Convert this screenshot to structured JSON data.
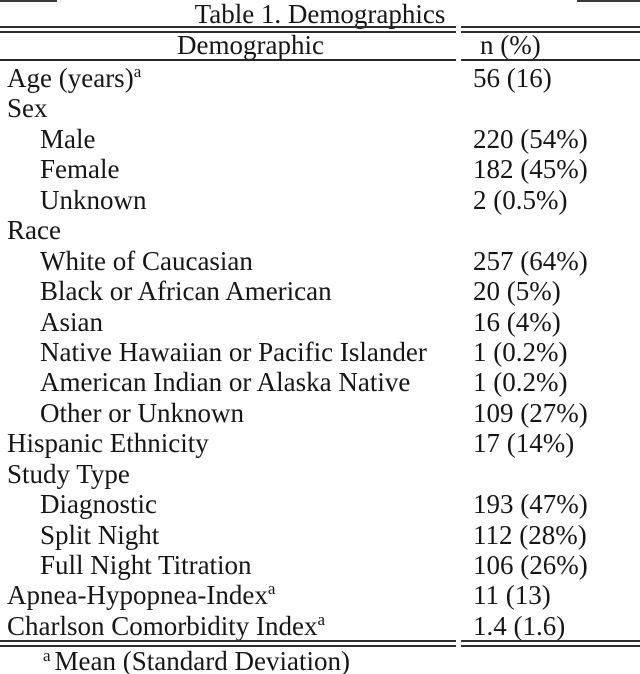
{
  "table": {
    "title": "Table 1. Demographics",
    "columns": [
      "Demographic",
      "n (%)"
    ],
    "rows": [
      {
        "label": "Age (years)",
        "sup": "a",
        "value": "56 (16)",
        "indent": 0
      },
      {
        "label": "Sex",
        "sup": "",
        "value": "",
        "indent": 0
      },
      {
        "label": "Male",
        "sup": "",
        "value": "220 (54%)",
        "indent": 1
      },
      {
        "label": "Female",
        "sup": "",
        "value": "182 (45%)",
        "indent": 1
      },
      {
        "label": "Unknown",
        "sup": "",
        "value": "2 (0.5%)",
        "indent": 1
      },
      {
        "label": "Race",
        "sup": "",
        "value": "",
        "indent": 0
      },
      {
        "label": "White of Caucasian",
        "sup": "",
        "value": "257 (64%)",
        "indent": 1
      },
      {
        "label": "Black or African American",
        "sup": "",
        "value": "20 (5%)",
        "indent": 1
      },
      {
        "label": "Asian",
        "sup": "",
        "value": "16 (4%)",
        "indent": 1
      },
      {
        "label": "Native Hawaiian or Pacific Islander",
        "sup": "",
        "value": "1 (0.2%)",
        "indent": 1
      },
      {
        "label": "American Indian or Alaska Native",
        "sup": "",
        "value": "1 (0.2%)",
        "indent": 1
      },
      {
        "label": "Other or Unknown",
        "sup": "",
        "value": "109 (27%)",
        "indent": 1
      },
      {
        "label": "Hispanic Ethnicity",
        "sup": "",
        "value": "17 (14%)",
        "indent": 0
      },
      {
        "label": "Study Type",
        "sup": "",
        "value": "",
        "indent": 0
      },
      {
        "label": "Diagnostic",
        "sup": "",
        "value": "193 (47%)",
        "indent": 1
      },
      {
        "label": "Split Night",
        "sup": "",
        "value": "112 (28%)",
        "indent": 1
      },
      {
        "label": "Full Night Titration",
        "sup": "",
        "value": "106 (26%)",
        "indent": 1
      },
      {
        "label": "Apnea-Hypopnea-Index",
        "sup": "a",
        "value": "11 (13)",
        "indent": 0
      },
      {
        "label": "Charlson Comorbidity Index",
        "sup": "a",
        "value": "1.4 (1.6)",
        "indent": 0
      }
    ],
    "footnote": {
      "marker": "a",
      "text": "Mean (Standard Deviation)"
    }
  },
  "colors": {
    "background": "#ffffff",
    "text": "#161616",
    "rule": "#2e2e2e"
  }
}
